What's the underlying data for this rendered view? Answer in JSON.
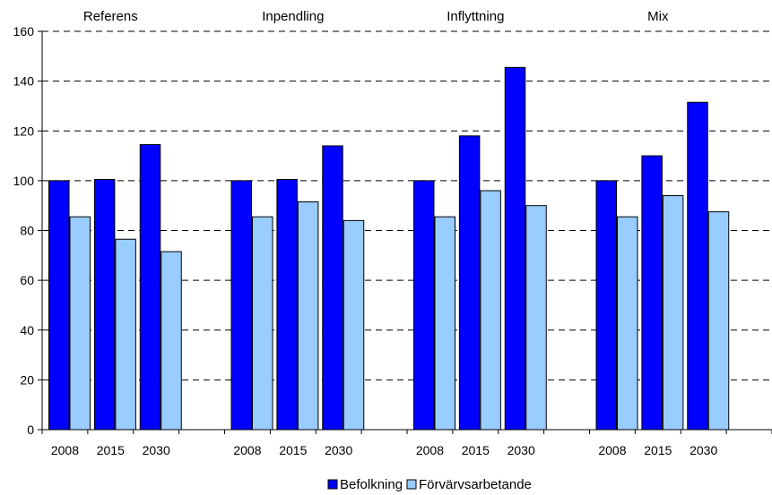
{
  "chart_data": {
    "type": "bar",
    "groups": [
      "Referens",
      "Inpendling",
      "Inflyttning",
      "Mix"
    ],
    "categories": [
      "2008",
      "2015",
      "2030"
    ],
    "series": [
      {
        "name": "Befolkning",
        "color": "#0000FF",
        "values": [
          [
            100,
            100.5,
            114.5
          ],
          [
            100,
            100.5,
            114
          ],
          [
            100,
            118,
            145.5
          ],
          [
            100,
            110,
            131.5
          ]
        ]
      },
      {
        "name": "Förvärvsarbetande",
        "color": "#99CCFF",
        "values": [
          [
            85.5,
            76.5,
            71.5
          ],
          [
            85.5,
            91.5,
            84
          ],
          [
            85.5,
            96,
            90
          ],
          [
            85.5,
            94,
            87.5
          ]
        ]
      }
    ],
    "ylim": [
      0,
      160
    ],
    "yticks": [
      "0",
      "20",
      "40",
      "60",
      "80",
      "100",
      "120",
      "140",
      "160"
    ],
    "grid": "horizontal dashed",
    "legend_position": "bottom"
  }
}
